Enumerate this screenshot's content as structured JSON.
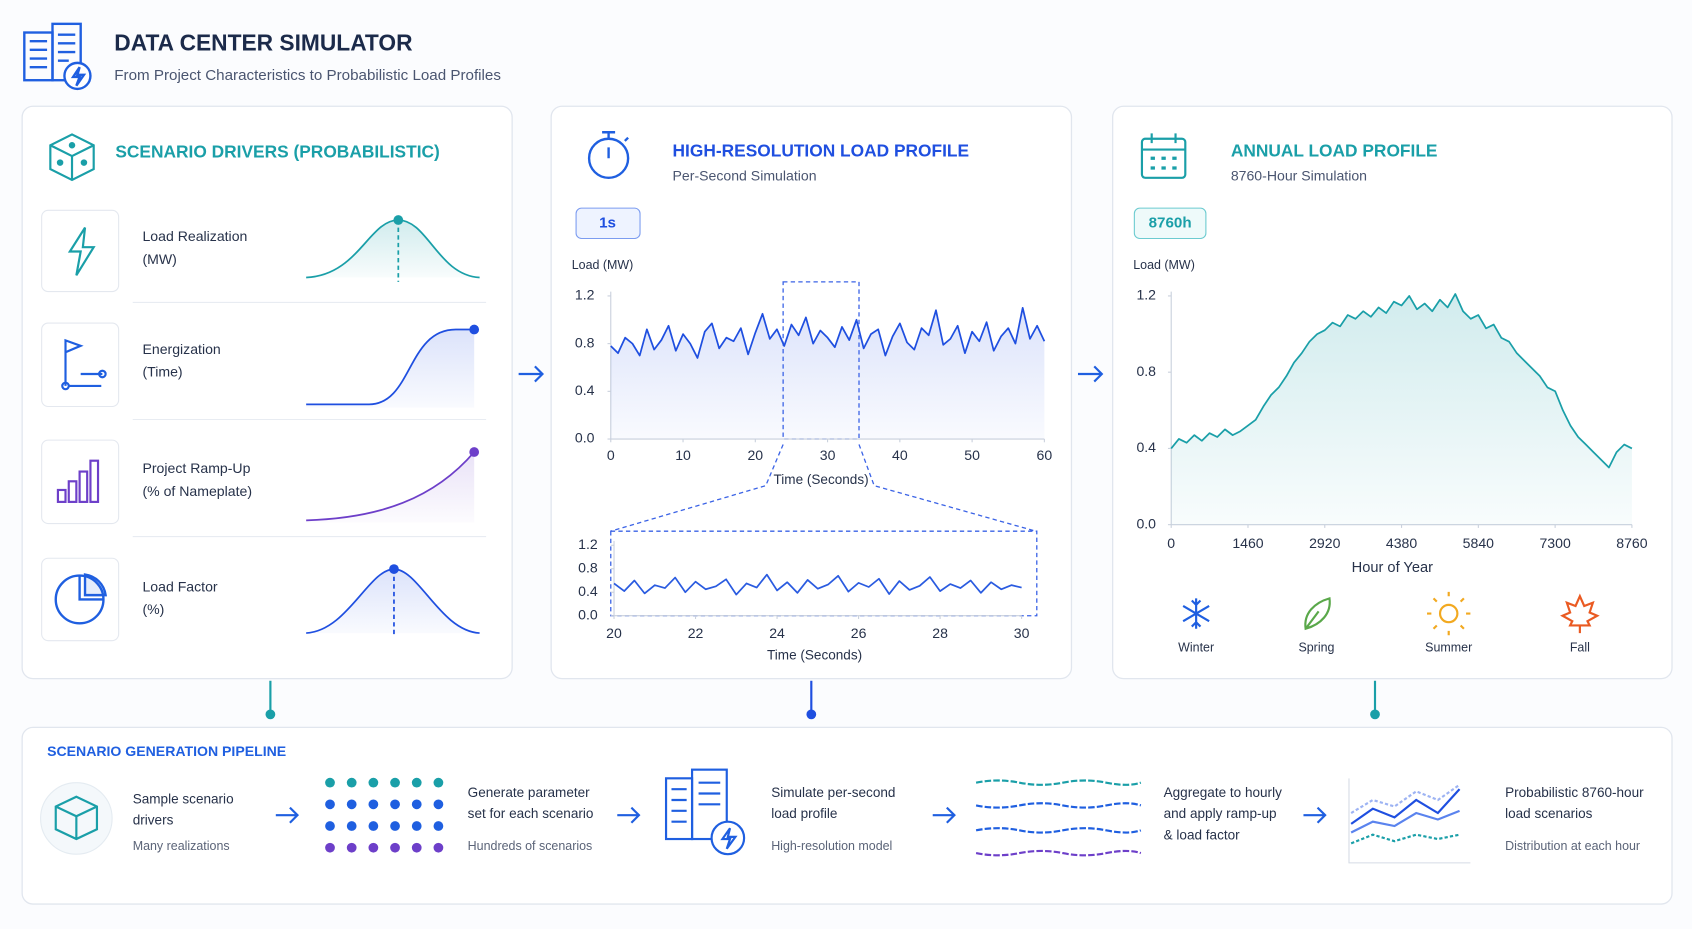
{
  "header": {
    "title": "DATA CENTER SIMULATOR",
    "subtitle": "From Project Characteristics to Probabilistic Load Profiles"
  },
  "drivers": {
    "title": "SCENARIO DRIVERS (PROBABILISTIC)",
    "items": [
      {
        "name": "Load Realization",
        "unit": "(MW)"
      },
      {
        "name": "Energization",
        "unit": "(Time)"
      },
      {
        "name": "Project Ramp-Up",
        "unit": "(% of Nameplate)"
      },
      {
        "name": "Load Factor",
        "unit": "(%)"
      }
    ]
  },
  "chart_data": [
    {
      "type": "line",
      "title": "HIGH-RESOLUTION LOAD PROFILE",
      "subtitle": "Per-Second Simulation",
      "badge": "1s",
      "y_label": "Load (MW)",
      "x_label": "Time (Seconds)",
      "color": "#1f4fe0",
      "x": [
        0,
        1,
        2,
        3,
        4,
        5,
        6,
        7,
        8,
        9,
        10,
        11,
        12,
        13,
        14,
        15,
        16,
        17,
        18,
        19,
        20,
        21,
        22,
        23,
        24,
        25,
        26,
        27,
        28,
        29,
        30,
        31,
        32,
        33,
        34,
        35,
        36,
        37,
        38,
        39,
        40,
        41,
        42,
        43,
        44,
        45,
        46,
        47,
        48,
        49,
        50,
        51,
        52,
        53,
        54,
        55,
        56,
        57,
        58,
        59,
        60
      ],
      "values": [
        0.78,
        0.72,
        0.85,
        0.8,
        0.7,
        0.92,
        0.75,
        0.83,
        0.95,
        0.74,
        0.88,
        0.8,
        0.68,
        0.9,
        0.97,
        0.76,
        0.85,
        0.82,
        0.93,
        0.71,
        0.89,
        1.05,
        0.84,
        0.92,
        0.78,
        0.96,
        0.87,
        1.02,
        0.8,
        0.91,
        0.85,
        0.77,
        0.94,
        0.83,
        1.0,
        0.76,
        0.88,
        0.92,
        0.7,
        0.86,
        0.97,
        0.81,
        0.75,
        0.93,
        0.87,
        1.08,
        0.79,
        0.84,
        0.95,
        0.72,
        0.9,
        0.82,
        0.98,
        0.74,
        0.86,
        0.93,
        0.8,
        1.1,
        0.84,
        0.95,
        0.82
      ],
      "xlim": [
        0,
        60
      ],
      "xticks": [
        0,
        10,
        20,
        30,
        40,
        50,
        60
      ],
      "ylim": [
        0,
        1.2
      ],
      "yticks": [
        {
          "value": 0,
          "label": "0.0"
        },
        0.4,
        0.8,
        1.2
      ]
    },
    {
      "type": "line",
      "x_label": "Time (Seconds)",
      "color": "#2a5be0",
      "x": [
        20,
        20.25,
        20.5,
        20.75,
        21,
        21.25,
        21.5,
        21.75,
        22,
        22.25,
        22.5,
        22.75,
        23,
        23.25,
        23.5,
        23.75,
        24,
        24.25,
        24.5,
        24.75,
        25,
        25.25,
        25.5,
        25.75,
        26,
        26.25,
        26.5,
        26.75,
        27,
        27.25,
        27.5,
        27.75,
        28,
        28.25,
        28.5,
        28.75,
        29,
        29.25,
        29.5,
        29.75,
        30
      ],
      "values": [
        0.55,
        0.42,
        0.6,
        0.38,
        0.52,
        0.47,
        0.65,
        0.4,
        0.58,
        0.45,
        0.5,
        0.62,
        0.36,
        0.55,
        0.48,
        0.7,
        0.43,
        0.57,
        0.39,
        0.61,
        0.46,
        0.53,
        0.68,
        0.41,
        0.56,
        0.49,
        0.63,
        0.37,
        0.59,
        0.44,
        0.51,
        0.66,
        0.42,
        0.54,
        0.47,
        0.6,
        0.39,
        0.57,
        0.45,
        0.52,
        0.48
      ],
      "xlim": [
        20,
        30
      ],
      "xticks": [
        20,
        22,
        24,
        26,
        28,
        30
      ],
      "ylim": [
        0,
        1.2
      ],
      "yticks": [
        {
          "value": 0,
          "label": "0.0"
        },
        0.4,
        0.8,
        1.2
      ]
    },
    {
      "type": "line",
      "title": "ANNUAL LOAD PROFILE",
      "subtitle": "8760-Hour Simulation",
      "badge": "8760h",
      "y_label": "Load (MW)",
      "x_label": "Hour of Year",
      "color": "#1a9fa8",
      "x": [
        0,
        146,
        292,
        438,
        584,
        730,
        876,
        1022,
        1168,
        1314,
        1460,
        1606,
        1752,
        1898,
        2044,
        2190,
        2336,
        2482,
        2628,
        2774,
        2920,
        3066,
        3212,
        3358,
        3504,
        3650,
        3796,
        3942,
        4088,
        4234,
        4380,
        4526,
        4672,
        4818,
        4964,
        5110,
        5256,
        5402,
        5548,
        5694,
        5840,
        5986,
        6132,
        6278,
        6424,
        6570,
        6716,
        6862,
        7008,
        7154,
        7300,
        7446,
        7592,
        7738,
        7884,
        8030,
        8176,
        8322,
        8468,
        8614,
        8760
      ],
      "values": [
        0.4,
        0.45,
        0.43,
        0.47,
        0.44,
        0.48,
        0.46,
        0.5,
        0.47,
        0.49,
        0.52,
        0.55,
        0.62,
        0.68,
        0.72,
        0.78,
        0.85,
        0.9,
        0.96,
        1.0,
        1.02,
        1.06,
        1.04,
        1.1,
        1.08,
        1.12,
        1.09,
        1.14,
        1.11,
        1.17,
        1.15,
        1.2,
        1.13,
        1.16,
        1.12,
        1.18,
        1.14,
        1.21,
        1.12,
        1.08,
        1.1,
        1.03,
        1.05,
        0.98,
        0.96,
        0.9,
        0.86,
        0.82,
        0.78,
        0.72,
        0.7,
        0.6,
        0.52,
        0.46,
        0.42,
        0.38,
        0.34,
        0.3,
        0.38,
        0.42,
        0.4
      ],
      "xlim": [
        0,
        8760
      ],
      "xticks": [
        0,
        1460,
        2920,
        4380,
        5840,
        7300,
        8760
      ],
      "ylim": [
        0,
        1.2
      ],
      "yticks": [
        {
          "value": 0,
          "label": "0.0"
        },
        0.4,
        0.8,
        1.2
      ],
      "seasons": [
        "Winter",
        "Spring",
        "Summer",
        "Fall"
      ]
    }
  ],
  "pipeline": {
    "title": "SCENARIO GENERATION PIPELINE",
    "steps": [
      {
        "lines": [
          "Sample scenario",
          "drivers"
        ],
        "note": "Many realizations"
      },
      {
        "lines": [
          "Generate parameter",
          "set for each scenario"
        ],
        "note": "Hundreds of scenarios"
      },
      {
        "lines": [
          "Simulate per-second",
          "load profile"
        ],
        "note": "High-resolution model"
      },
      {
        "lines": [
          "Aggregate to hourly",
          "and apply ramp-up",
          "& load factor"
        ]
      },
      {
        "lines": [
          "Probabilistic 8760-hour",
          "load scenarios"
        ],
        "note": "Distribution at each hour"
      }
    ]
  }
}
